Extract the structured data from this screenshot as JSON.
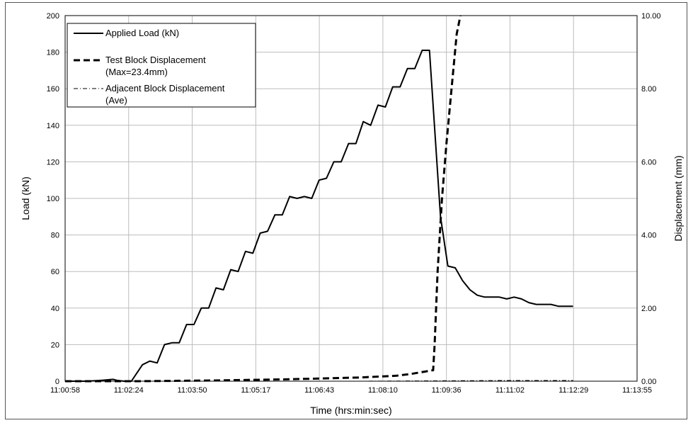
{
  "chart_data": {
    "type": "line",
    "xlabel": "Time (hrs:min:sec)",
    "ylabel": "Load (kN)",
    "y2label": "Displacement (mm)",
    "xticks": [
      "11:00:58",
      "11:02:24",
      "11:03:50",
      "11:05:17",
      "11:06:43",
      "11:08:10",
      "11:09:36",
      "11:11:02",
      "11:12:29",
      "11:13:55"
    ],
    "yticks": [
      "0",
      "20",
      "40",
      "60",
      "80",
      "100",
      "120",
      "140",
      "160",
      "180",
      "200"
    ],
    "y2ticks": [
      "0.00",
      "2.00",
      "4.00",
      "6.00",
      "8.00",
      "10.00"
    ],
    "ylim": [
      0,
      200
    ],
    "y2lim": [
      0,
      10
    ],
    "xlim_seconds_from_first_tick": [
      0,
      777
    ],
    "grid": true,
    "legend_position": "top-left",
    "legend": [
      {
        "label": "Applied Load (kN)",
        "label2": "",
        "style": "solid"
      },
      {
        "label": "Test Block Displacement",
        "label2": "(Max=23.4mm)",
        "style": "dashed"
      },
      {
        "label": "Adjacent Block Displacement",
        "label2": "(Ave)",
        "style": "dashdot"
      }
    ],
    "series": [
      {
        "name": "Applied Load (kN)",
        "axis": "left",
        "style": "solid",
        "points": [
          [
            0,
            0
          ],
          [
            30,
            0
          ],
          [
            50,
            0.5
          ],
          [
            65,
            1
          ],
          [
            70,
            0.5
          ],
          [
            80,
            0
          ],
          [
            85,
            0
          ],
          [
            90,
            0
          ],
          [
            105,
            9
          ],
          [
            115,
            11
          ],
          [
            125,
            10
          ],
          [
            135,
            20
          ],
          [
            145,
            21
          ],
          [
            155,
            21
          ],
          [
            165,
            31
          ],
          [
            175,
            31
          ],
          [
            185,
            40
          ],
          [
            195,
            40
          ],
          [
            205,
            51
          ],
          [
            215,
            50
          ],
          [
            225,
            61
          ],
          [
            235,
            60
          ],
          [
            245,
            71
          ],
          [
            255,
            70
          ],
          [
            265,
            81
          ],
          [
            275,
            82
          ],
          [
            285,
            91
          ],
          [
            295,
            91
          ],
          [
            305,
            101
          ],
          [
            315,
            100
          ],
          [
            325,
            101
          ],
          [
            335,
            100
          ],
          [
            345,
            110
          ],
          [
            355,
            111
          ],
          [
            365,
            120
          ],
          [
            375,
            120
          ],
          [
            385,
            130
          ],
          [
            395,
            130
          ],
          [
            405,
            142
          ],
          [
            415,
            140
          ],
          [
            425,
            151
          ],
          [
            435,
            150
          ],
          [
            445,
            161
          ],
          [
            455,
            161
          ],
          [
            465,
            171
          ],
          [
            475,
            171
          ],
          [
            485,
            181
          ],
          [
            495,
            181
          ],
          [
            510,
            90
          ],
          [
            520,
            63
          ],
          [
            530,
            62
          ],
          [
            540,
            55
          ],
          [
            550,
            50
          ],
          [
            560,
            47
          ],
          [
            570,
            46
          ],
          [
            580,
            46
          ],
          [
            590,
            46
          ],
          [
            600,
            45
          ],
          [
            610,
            46
          ],
          [
            620,
            45
          ],
          [
            630,
            43
          ],
          [
            640,
            42
          ],
          [
            650,
            42
          ],
          [
            660,
            42
          ],
          [
            670,
            41
          ],
          [
            680,
            41
          ],
          [
            690,
            41
          ]
        ]
      },
      {
        "name": "Test Block Displacement",
        "axis": "right",
        "style": "dashed",
        "points": [
          [
            0,
            0
          ],
          [
            100,
            0
          ],
          [
            200,
            0.02
          ],
          [
            300,
            0.05
          ],
          [
            400,
            0.1
          ],
          [
            450,
            0.15
          ],
          [
            470,
            0.2
          ],
          [
            485,
            0.25
          ],
          [
            500,
            0.3
          ],
          [
            502,
            1.0
          ],
          [
            506,
            3.0
          ],
          [
            512,
            5.0
          ],
          [
            518,
            6.5
          ],
          [
            525,
            8.0
          ],
          [
            532,
            9.5
          ],
          [
            537,
            10.0
          ]
        ]
      },
      {
        "name": "Adjacent Block Displacement (Ave)",
        "axis": "right",
        "style": "dashdot",
        "points": [
          [
            0,
            0
          ],
          [
            200,
            0
          ],
          [
            400,
            0
          ],
          [
            500,
            0.01
          ],
          [
            600,
            0.02
          ],
          [
            690,
            0.02
          ]
        ]
      }
    ]
  }
}
